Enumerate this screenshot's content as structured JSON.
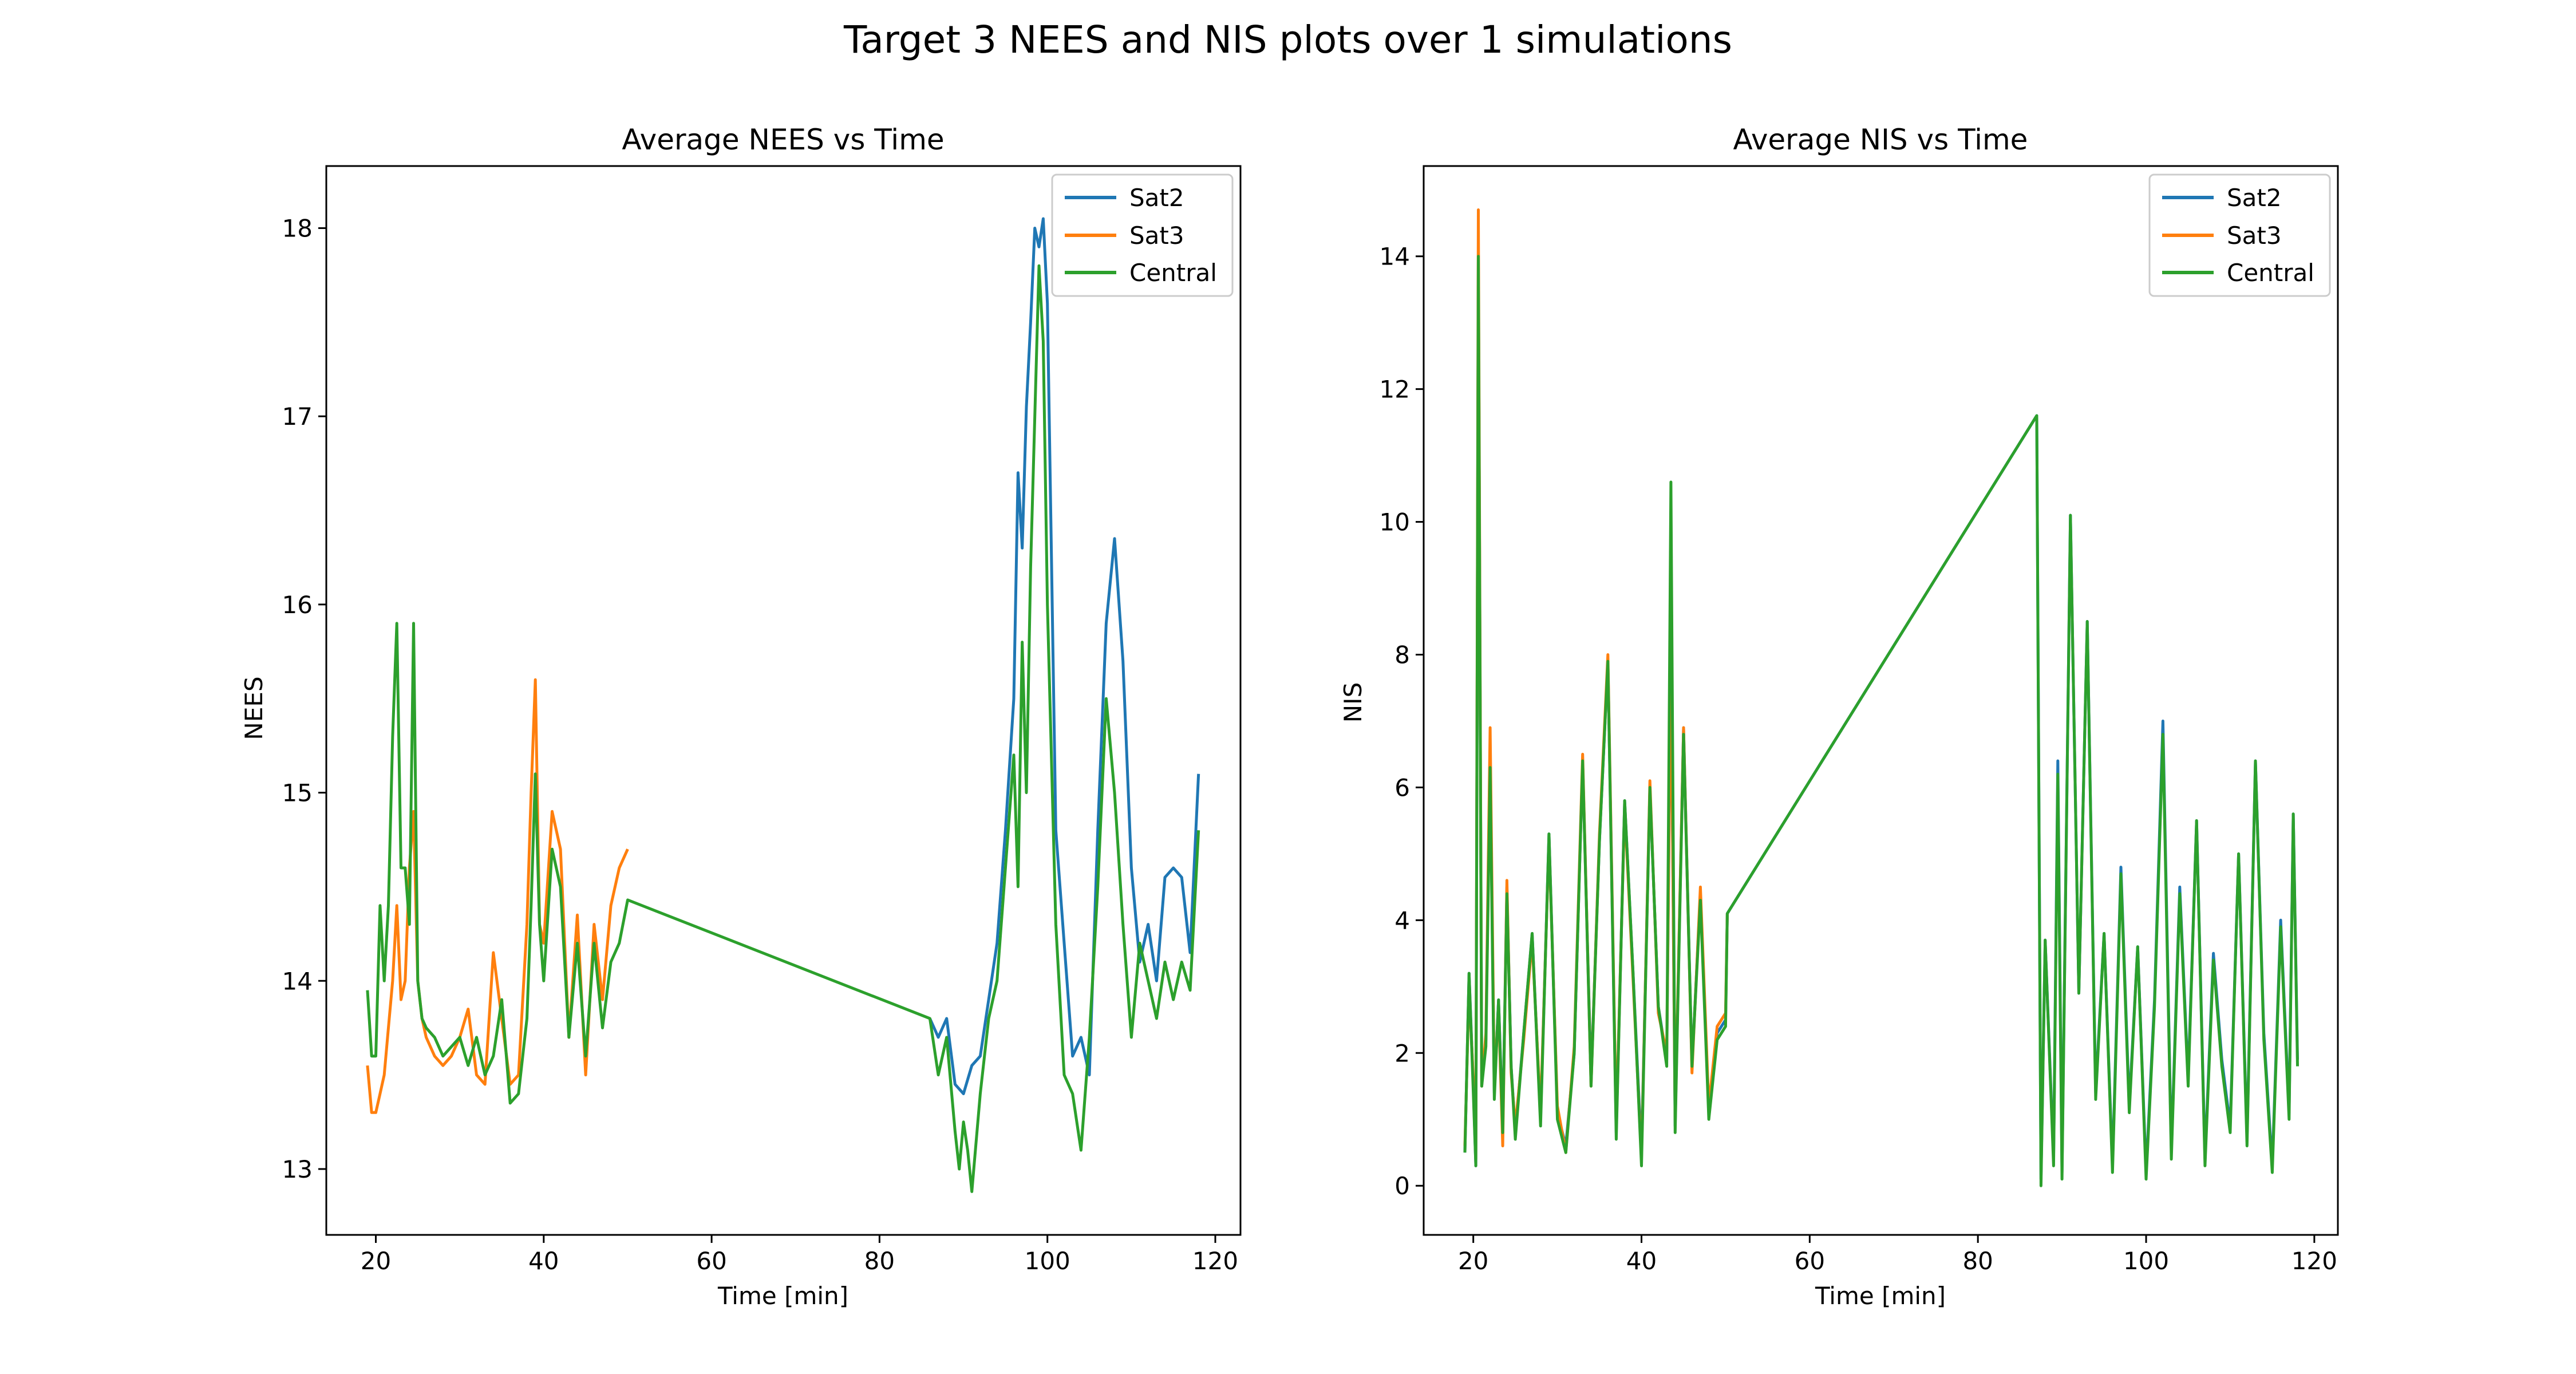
{
  "figure": {
    "suptitle": "Target 3 NEES and NIS plots over 1 simulations"
  },
  "chart_data": [
    {
      "type": "line",
      "title": "Average NEES vs Time",
      "xlabel": "Time [min]",
      "ylabel": "NEES",
      "xlim": [
        14.1,
        123.0
      ],
      "ylim": [
        12.65,
        18.33
      ],
      "xticks": [
        20,
        40,
        60,
        80,
        100,
        120
      ],
      "yticks": [
        13,
        14,
        15,
        16,
        17,
        18
      ],
      "legend": "top-right",
      "grid": false,
      "series": [
        {
          "name": "Sat2",
          "color": "#1f77b4",
          "x": [
            86.0,
            87.0,
            88.0,
            89.0,
            90.0,
            91.0,
            92.0,
            93.0,
            94.0,
            95.0,
            96.0,
            96.5,
            97.0,
            97.5,
            98.0,
            98.5,
            99.0,
            99.5,
            100.0,
            101.0,
            102.0,
            103.0,
            104.0,
            105.0,
            106.0,
            107.0,
            108.0,
            109.0,
            110.0,
            111.0,
            112.0,
            113.0,
            114.0,
            115.0,
            116.0,
            117.0,
            118.0
          ],
          "y": [
            13.8,
            13.7,
            13.8,
            13.45,
            13.4,
            13.55,
            13.6,
            13.9,
            14.2,
            14.8,
            15.5,
            16.7,
            16.3,
            17.05,
            17.5,
            18.0,
            17.9,
            18.05,
            17.6,
            14.8,
            14.2,
            13.6,
            13.7,
            13.5,
            14.8,
            15.9,
            16.35,
            15.7,
            14.6,
            14.1,
            14.3,
            14.0,
            14.55,
            14.6,
            14.55,
            14.15,
            15.1
          ]
        },
        {
          "name": "Sat3",
          "color": "#ff7f0e",
          "x": [
            19.0,
            19.5,
            20.0,
            20.5,
            21.0,
            21.5,
            22.0,
            22.5,
            23.0,
            23.5,
            24.0,
            24.5,
            25.0,
            25.5,
            26.0,
            27.0,
            28.0,
            29.0,
            30.0,
            31.0,
            32.0,
            33.0,
            34.0,
            35.0,
            36.0,
            37.0,
            38.0,
            38.5,
            39.0,
            39.5,
            40.0,
            41.0,
            42.0,
            43.0,
            44.0,
            45.0,
            46.0,
            47.0,
            48.0,
            49.0,
            50.0
          ],
          "y": [
            13.55,
            13.3,
            13.3,
            13.4,
            13.5,
            13.75,
            14.0,
            14.4,
            13.9,
            14.0,
            14.6,
            14.9,
            14.0,
            13.8,
            13.7,
            13.6,
            13.55,
            13.6,
            13.7,
            13.85,
            13.5,
            13.45,
            14.15,
            13.8,
            13.45,
            13.5,
            14.3,
            15.0,
            15.6,
            14.3,
            14.2,
            14.9,
            14.7,
            13.7,
            14.35,
            13.5,
            14.3,
            13.9,
            14.4,
            14.6,
            14.7
          ]
        },
        {
          "name": "Central",
          "color": "#2ca02c",
          "x": [
            19.0,
            19.5,
            20.0,
            20.5,
            21.0,
            21.5,
            22.0,
            22.5,
            23.0,
            23.5,
            24.0,
            24.5,
            25.0,
            25.5,
            26.0,
            27.0,
            28.0,
            29.0,
            30.0,
            31.0,
            32.0,
            33.0,
            34.0,
            35.0,
            36.0,
            37.0,
            38.0,
            38.5,
            39.0,
            39.5,
            40.0,
            41.0,
            42.0,
            43.0,
            44.0,
            45.0,
            46.0,
            47.0,
            48.0,
            49.0,
            50.0,
            86.0,
            87.0,
            88.0,
            89.0,
            89.5,
            90.0,
            90.5,
            91.0,
            92.0,
            93.0,
            94.0,
            95.0,
            96.0,
            96.5,
            97.0,
            97.5,
            98.0,
            98.5,
            99.0,
            99.5,
            100.0,
            101.0,
            102.0,
            103.0,
            104.0,
            105.0,
            106.0,
            107.0,
            108.0,
            109.0,
            110.0,
            111.0,
            112.0,
            113.0,
            114.0,
            115.0,
            116.0,
            117.0,
            118.0
          ],
          "y": [
            13.95,
            13.6,
            13.6,
            14.4,
            14.0,
            14.4,
            15.3,
            15.9,
            14.6,
            14.6,
            14.3,
            15.9,
            14.0,
            13.8,
            13.75,
            13.7,
            13.6,
            13.65,
            13.7,
            13.55,
            13.7,
            13.5,
            13.6,
            13.9,
            13.35,
            13.4,
            13.8,
            14.4,
            15.1,
            14.3,
            14.0,
            14.7,
            14.5,
            13.7,
            14.2,
            13.6,
            14.2,
            13.75,
            14.1,
            14.2,
            14.43,
            13.8,
            13.5,
            13.7,
            13.2,
            13.0,
            13.25,
            13.1,
            12.88,
            13.4,
            13.8,
            14.0,
            14.6,
            15.2,
            14.5,
            15.8,
            15.0,
            16.2,
            17.0,
            17.8,
            17.4,
            16.0,
            14.3,
            13.5,
            13.4,
            13.1,
            13.7,
            14.5,
            15.5,
            15.0,
            14.3,
            13.7,
            14.2,
            14.0,
            13.8,
            14.1,
            13.9,
            14.1,
            13.95,
            14.8
          ]
        }
      ]
    },
    {
      "type": "line",
      "title": "Average NIS vs Time",
      "xlabel": "Time [min]",
      "ylabel": "NIS",
      "xlim": [
        14.1,
        122.8
      ],
      "ylim": [
        -0.74,
        15.36
      ],
      "xticks": [
        20,
        40,
        60,
        80,
        100,
        120
      ],
      "yticks": [
        0,
        2,
        4,
        6,
        8,
        10,
        12,
        14
      ],
      "legend": "top-right",
      "grid": false,
      "series": [
        {
          "name": "Sat2",
          "color": "#1f77b4",
          "x": [
            19.0,
            19.5,
            20.0,
            20.3,
            20.6,
            21.0,
            21.5,
            22.0,
            22.5,
            23.0,
            23.5,
            24.0,
            24.5,
            25.0,
            26.0,
            27.0,
            28.0,
            29.0,
            30.0,
            31.0,
            32.0,
            33.0,
            34.0,
            35.0,
            36.0,
            37.0,
            38.0,
            39.0,
            40.0,
            41.0,
            42.0,
            43.0,
            43.5,
            44.0,
            45.0,
            46.0,
            47.0,
            48.0,
            49.0,
            50.0,
            50.2,
            87.0,
            87.5,
            88.0,
            89.0,
            89.5,
            90.0,
            91.0,
            92.0,
            93.0,
            94.0,
            95.0,
            96.0,
            97.0,
            98.0,
            99.0,
            100.0,
            101.0,
            102.0,
            103.0,
            104.0,
            105.0,
            106.0,
            107.0,
            108.0,
            109.0,
            110.0,
            111.0,
            112.0,
            113.0,
            114.0,
            115.0,
            116.0,
            117.0,
            117.5,
            118.0
          ],
          "y": [
            0.5,
            3.2,
            1.5,
            0.3,
            14.0,
            1.6,
            2.2,
            6.5,
            1.4,
            2.8,
            0.9,
            4.5,
            1.8,
            0.8,
            2.3,
            3.8,
            1.0,
            5.3,
            1.1,
            0.6,
            2.0,
            6.4,
            1.6,
            5.2,
            7.9,
            0.8,
            5.8,
            3.2,
            0.5,
            6.0,
            2.7,
            1.9,
            8.0,
            0.9,
            6.9,
            1.8,
            4.4,
            1.1,
            2.3,
            2.5,
            4.1,
            11.6,
            0.1,
            3.7,
            0.4,
            6.4,
            0.2,
            10.1,
            2.9,
            8.5,
            1.4,
            3.8,
            0.3,
            4.8,
            1.2,
            3.6,
            0.2,
            2.8,
            7.0,
            0.5,
            4.5,
            1.6,
            5.5,
            0.4,
            3.5,
            1.9,
            0.9,
            5.0,
            0.7,
            6.4,
            2.3,
            0.3,
            4.0,
            1.1,
            5.6,
            1.9
          ]
        },
        {
          "name": "Sat3",
          "color": "#ff7f0e",
          "x": [
            19.0,
            19.5,
            20.0,
            20.3,
            20.6,
            21.0,
            21.5,
            22.0,
            22.5,
            23.0,
            23.5,
            24.0,
            24.5,
            25.0,
            26.0,
            27.0,
            28.0,
            29.0,
            30.0,
            31.0,
            32.0,
            33.0,
            34.0,
            35.0,
            36.0,
            37.0,
            38.0,
            39.0,
            40.0,
            41.0,
            42.0,
            43.0,
            43.5,
            44.0,
            45.0,
            46.0,
            47.0,
            48.0,
            49.0,
            50.0,
            50.2
          ],
          "y": [
            0.6,
            3.0,
            1.6,
            0.4,
            14.7,
            1.5,
            2.3,
            6.9,
            1.5,
            2.7,
            0.6,
            4.6,
            1.7,
            0.9,
            2.2,
            3.7,
            1.1,
            5.2,
            1.2,
            0.5,
            2.1,
            6.5,
            1.5,
            5.3,
            8.0,
            0.9,
            5.7,
            3.1,
            0.4,
            6.1,
            2.6,
            2.0,
            8.1,
            1.0,
            6.9,
            1.7,
            4.5,
            1.2,
            2.4,
            2.6,
            4.1
          ]
        },
        {
          "name": "Central",
          "color": "#2ca02c",
          "x": [
            19.0,
            19.5,
            20.0,
            20.3,
            20.6,
            21.0,
            21.5,
            22.0,
            22.5,
            23.0,
            23.5,
            24.0,
            24.5,
            25.0,
            26.0,
            27.0,
            28.0,
            29.0,
            30.0,
            31.0,
            32.0,
            33.0,
            34.0,
            35.0,
            36.0,
            37.0,
            38.0,
            39.0,
            40.0,
            41.0,
            42.0,
            43.0,
            43.5,
            44.0,
            45.0,
            46.0,
            47.0,
            48.0,
            49.0,
            50.0,
            50.2,
            87.0,
            87.5,
            88.0,
            89.0,
            89.5,
            90.0,
            91.0,
            92.0,
            93.0,
            94.0,
            95.0,
            96.0,
            97.0,
            98.0,
            99.0,
            100.0,
            101.0,
            102.0,
            103.0,
            104.0,
            105.0,
            106.0,
            107.0,
            108.0,
            109.0,
            110.0,
            111.0,
            112.0,
            113.0,
            114.0,
            115.0,
            116.0,
            117.0,
            117.5,
            118.0
          ],
          "y": [
            0.5,
            3.2,
            1.4,
            0.3,
            14.0,
            1.5,
            2.1,
            6.3,
            1.3,
            2.8,
            0.8,
            4.4,
            1.8,
            0.7,
            2.3,
            3.8,
            0.9,
            5.3,
            1.0,
            0.5,
            2.0,
            6.4,
            1.5,
            5.2,
            7.9,
            0.7,
            5.8,
            3.2,
            0.3,
            6.0,
            2.7,
            1.8,
            10.6,
            0.8,
            6.8,
            1.8,
            4.3,
            1.0,
            2.2,
            2.4,
            4.1,
            11.6,
            0.0,
            3.7,
            0.3,
            6.2,
            0.1,
            10.1,
            2.9,
            8.5,
            1.3,
            3.8,
            0.2,
            4.7,
            1.1,
            3.6,
            0.1,
            2.7,
            6.8,
            0.4,
            4.4,
            1.5,
            5.5,
            0.3,
            3.4,
            1.8,
            0.8,
            5.0,
            0.6,
            6.4,
            2.2,
            0.2,
            3.9,
            1.0,
            5.6,
            1.8
          ]
        }
      ]
    }
  ]
}
